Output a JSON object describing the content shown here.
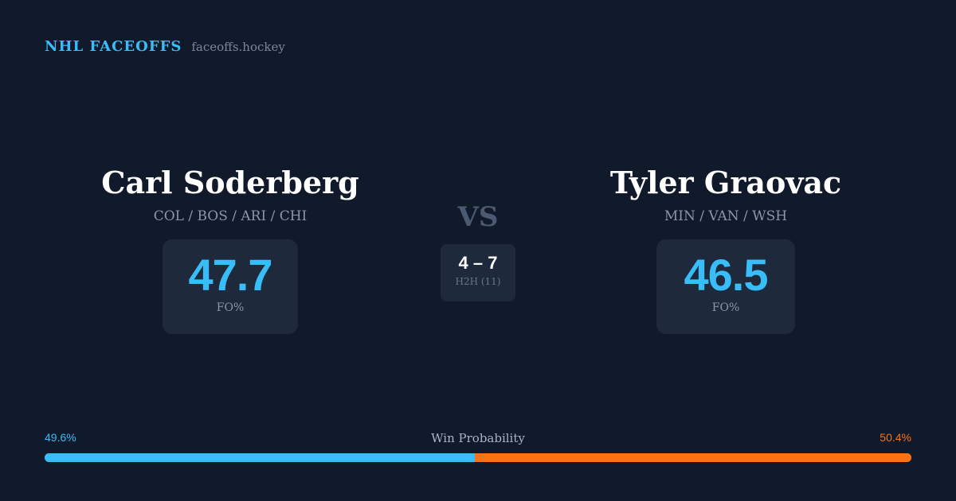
{
  "brand": {
    "name": "NHL FACEOFFS",
    "site": "faceoffs.hockey"
  },
  "players": {
    "left": {
      "name": "Carl Soderberg",
      "teams": "COL / BOS / ARI / CHI",
      "fo_value": "47.7",
      "fo_label": "FO%"
    },
    "right": {
      "name": "Tyler Graovac",
      "teams": "MIN / VAN / WSH",
      "fo_value": "46.5",
      "fo_label": "FO%"
    }
  },
  "vs_label": "VS",
  "h2h": {
    "score": "4 – 7",
    "label": "H2H (11)"
  },
  "win_probability": {
    "title": "Win Probability",
    "left_label": "49.6%",
    "right_label": "50.4%",
    "left_value": 49.6,
    "right_value": 50.4
  },
  "colors": {
    "background": "#101a2b",
    "card": "#1e293b",
    "accent_left": "#38bdf8",
    "accent_right": "#f97316",
    "muted_text": "#8b96a8"
  }
}
